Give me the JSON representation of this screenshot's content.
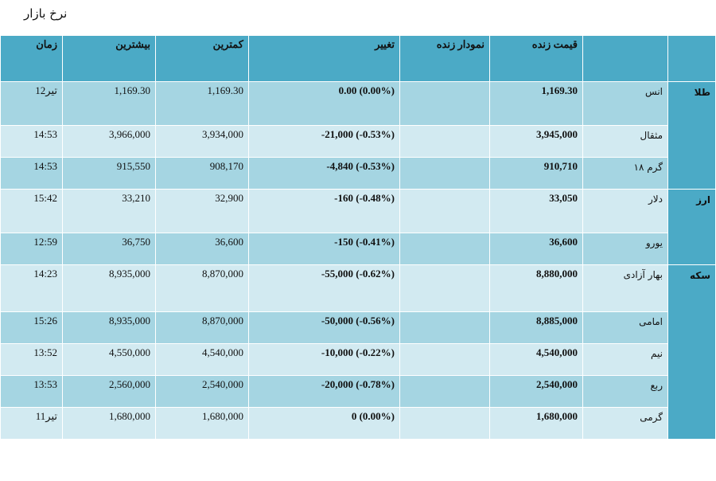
{
  "page_title": "نرخ بازار",
  "headers": {
    "time": "زمان",
    "high": "بیشترین",
    "low": "کمترین",
    "change": "تغییر",
    "chart": "نمودار زنده",
    "live_price": "قیمت زنده"
  },
  "groups": {
    "gold": "طلا",
    "currency": "ارز",
    "coin": "سکه"
  },
  "rows": [
    {
      "name": "انس",
      "price": "1,169.30",
      "change": "0.00 (0.00%)",
      "low": "1,169.30",
      "high": "1,169.30",
      "time": "12تیر"
    },
    {
      "name": "مثقال",
      "price": "3,945,000",
      "change": "-21,000 (-0.53%)",
      "low": "3,934,000",
      "high": "3,966,000",
      "time": "14:53"
    },
    {
      "name": "گرم ۱۸",
      "price": "910,710",
      "change": "-4,840 (-0.53%)",
      "low": "908,170",
      "high": "915,550",
      "time": "14:53"
    },
    {
      "name": "دلار",
      "price": "33,050",
      "change": "-160 (-0.48%)",
      "low": "32,900",
      "high": "33,210",
      "time": "15:42"
    },
    {
      "name": "یورو",
      "price": "36,600",
      "change": "-150 (-0.41%)",
      "low": "36,600",
      "high": "36,750",
      "time": "12:59"
    },
    {
      "name": "بهار آزادی",
      "price": "8,880,000",
      "change": "-55,000 (-0.62%)",
      "low": "8,870,000",
      "high": "8,935,000",
      "time": "14:23"
    },
    {
      "name": "امامی",
      "price": "8,885,000",
      "change": "-50,000 (-0.56%)",
      "low": "8,870,000",
      "high": "8,935,000",
      "time": "15:26"
    },
    {
      "name": "نیم",
      "price": "4,540,000",
      "change": "-10,000 (-0.22%)",
      "low": "4,540,000",
      "high": "4,550,000",
      "time": "13:52"
    },
    {
      "name": "ربع",
      "price": "2,540,000",
      "change": "-20,000 (-0.78%)",
      "low": "2,540,000",
      "high": "2,560,000",
      "time": "13:53"
    },
    {
      "name": "گرمی",
      "price": "1,680,000",
      "change": "0 (0.00%)",
      "low": "1,680,000",
      "high": "1,680,000",
      "time": "11تیر"
    }
  ]
}
